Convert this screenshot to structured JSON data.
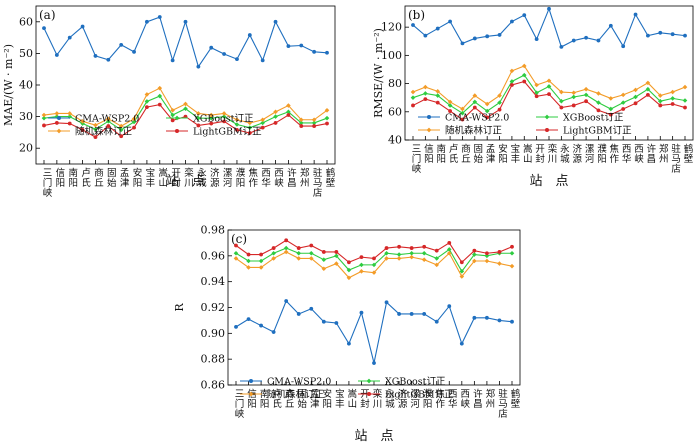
{
  "stations": [
    "三门峡",
    "信阳",
    "南阳",
    "卢氏",
    "商丘",
    "固始",
    "孟津",
    "安阳",
    "宝丰",
    "嵩山",
    "开封",
    "栾川",
    "永城",
    "济源",
    "漯河",
    "濮阳",
    "焦作",
    "西华",
    "西峡",
    "许昌",
    "郑州",
    "驻马店",
    "鹤壁"
  ],
  "colors": {
    "cma": "#1f6fbf",
    "xgb": "#2ecc40",
    "rf": "#f39c28",
    "lgbm": "#d62728"
  },
  "chart_data": [
    {
      "type": "line",
      "panel_label": "(a)",
      "ylabel": "MAE/(W · m⁻²)",
      "xlabel": "站　点",
      "ylim": [
        15,
        65
      ],
      "yticks": [
        20,
        30,
        40,
        50,
        60
      ],
      "tick_labels": [
        "20",
        "30",
        "40",
        "50",
        "60"
      ],
      "categories": [
        "三门峡",
        "信阳",
        "南阳",
        "卢氏",
        "商丘",
        "固始",
        "孟津",
        "安阳",
        "宝丰",
        "嵩山",
        "开封",
        "栾川",
        "永城",
        "济源",
        "漯河",
        "濮阳",
        "焦作",
        "西华",
        "西峡",
        "许昌",
        "郑州",
        "驻马店",
        "鹤壁"
      ],
      "series": [
        {
          "name": "CMA-WSP2.0",
          "key": "cma",
          "values": [
            58,
            49.5,
            55,
            58.5,
            49.2,
            48,
            52.7,
            50.5,
            60,
            61.5,
            47.8,
            60,
            45.8,
            51.8,
            49.8,
            48.2,
            55.8,
            47.8,
            60,
            52.3,
            52.5,
            50.5,
            50.2
          ]
        },
        {
          "name": "XGBoost订正",
          "key": "xgb",
          "values": [
            29.5,
            30,
            30,
            27.8,
            26,
            28.5,
            25.8,
            28.3,
            34.8,
            36.5,
            30.5,
            32.5,
            29.5,
            29.5,
            30,
            27.5,
            26.5,
            28,
            30,
            31.5,
            28,
            28,
            29.5
          ]
        },
        {
          "name": "随机森林订正",
          "key": "rf",
          "values": [
            30.5,
            31,
            31,
            28.5,
            27.3,
            29.3,
            27,
            29.3,
            37,
            39,
            32,
            34,
            31,
            30.5,
            31,
            29,
            28,
            29,
            31.5,
            33.5,
            29,
            29,
            32
          ]
        },
        {
          "name": "LightGBM订正",
          "key": "lgbm",
          "values": [
            27.2,
            28,
            27.8,
            25.8,
            23.5,
            27,
            23.8,
            26.5,
            33,
            33.8,
            28.8,
            30,
            27.2,
            27.8,
            28.5,
            25.8,
            24.8,
            26.5,
            28,
            30.5,
            27,
            27,
            27.8
          ]
        }
      ]
    },
    {
      "type": "line",
      "panel_label": "(b)",
      "ylabel": "RMSE/(W · m⁻²)",
      "xlabel": "站　点",
      "ylim": [
        40,
        135
      ],
      "yticks": [
        40,
        60,
        80,
        100,
        120
      ],
      "tick_labels": [
        "40",
        "60",
        "80",
        "100",
        "120"
      ],
      "categories": [
        "三门峡",
        "信阳",
        "南阳",
        "卢氏",
        "商丘",
        "固始",
        "孟津",
        "安阳",
        "宝丰",
        "嵩山",
        "开封",
        "栾川",
        "永城",
        "济源",
        "漯河",
        "濮阳",
        "焦作",
        "西华",
        "西峡",
        "许昌",
        "郑州",
        "驻马店",
        "鹤壁"
      ],
      "series": [
        {
          "name": "CMA-WSP2.0",
          "key": "cma",
          "values": [
            121.5,
            114,
            119,
            124,
            108.5,
            112,
            113.5,
            114.5,
            124,
            128.5,
            111.5,
            133,
            106,
            110.5,
            112.5,
            110.5,
            121,
            106.5,
            129,
            114,
            116,
            115,
            114
          ]
        },
        {
          "name": "XGBoost订正",
          "key": "xgb",
          "values": [
            70,
            73,
            71.5,
            64.5,
            59,
            67,
            60.5,
            66.5,
            81.5,
            86,
            73.5,
            78,
            67.5,
            70.5,
            72,
            66.5,
            62,
            66.5,
            70.5,
            76,
            67.5,
            69.5,
            68
          ]
        },
        {
          "name": "随机森林订正",
          "key": "rf",
          "values": [
            74,
            77.5,
            74.5,
            67,
            62,
            71.5,
            65.5,
            71.5,
            89,
            92.5,
            79,
            82,
            74,
            73.5,
            76,
            73,
            69.5,
            72,
            75.5,
            80.5,
            71.5,
            74,
            77.5
          ]
        },
        {
          "name": "LightGBM订正",
          "key": "lgbm",
          "values": [
            64.5,
            69,
            66.5,
            60.5,
            54.5,
            63,
            56,
            61.5,
            79,
            81.5,
            71,
            72.5,
            63,
            64.5,
            67.5,
            61,
            58,
            62,
            66,
            72,
            64.5,
            65.5,
            63
          ]
        }
      ]
    },
    {
      "type": "line",
      "panel_label": "(c)",
      "ylabel": "R",
      "xlabel": "站　点",
      "ylim": [
        0.86,
        0.98
      ],
      "yticks": [
        0.86,
        0.88,
        0.9,
        0.92,
        0.94,
        0.96,
        0.98
      ],
      "tick_labels": [
        "0.86",
        "0.88",
        "0.90",
        "0.92",
        "0.94",
        "0.96",
        "0.98"
      ],
      "categories": [
        "三门峡",
        "信阳",
        "南阳",
        "卢氏",
        "商丘",
        "固始",
        "孟津",
        "安阳",
        "宝丰",
        "嵩山",
        "开封",
        "栾川",
        "永城",
        "济源",
        "漯河",
        "濮阳",
        "焦作",
        "西华",
        "西峡",
        "许昌",
        "郑州",
        "驻马店",
        "鹤壁"
      ],
      "series": [
        {
          "name": "CMA-WSP2.0",
          "key": "cma",
          "values": [
            0.905,
            0.911,
            0.906,
            0.901,
            0.925,
            0.915,
            0.919,
            0.909,
            0.908,
            0.892,
            0.916,
            0.877,
            0.924,
            0.915,
            0.915,
            0.915,
            0.909,
            0.921,
            0.892,
            0.912,
            0.912,
            0.91,
            0.909
          ]
        },
        {
          "name": "XGBoost订正",
          "key": "xgb",
          "values": [
            0.962,
            0.956,
            0.956,
            0.962,
            0.966,
            0.962,
            0.962,
            0.957,
            0.96,
            0.949,
            0.953,
            0.953,
            0.962,
            0.961,
            0.962,
            0.962,
            0.958,
            0.965,
            0.948,
            0.961,
            0.96,
            0.962,
            0.962
          ]
        },
        {
          "name": "随机森林订正",
          "key": "rf",
          "values": [
            0.958,
            0.951,
            0.951,
            0.958,
            0.963,
            0.958,
            0.958,
            0.95,
            0.954,
            0.943,
            0.948,
            0.947,
            0.958,
            0.958,
            0.959,
            0.957,
            0.953,
            0.962,
            0.944,
            0.956,
            0.956,
            0.954,
            0.952
          ]
        },
        {
          "name": "LightGBM订正",
          "key": "lgbm",
          "values": [
            0.968,
            0.961,
            0.961,
            0.966,
            0.972,
            0.966,
            0.968,
            0.963,
            0.963,
            0.955,
            0.959,
            0.958,
            0.966,
            0.967,
            0.966,
            0.967,
            0.964,
            0.97,
            0.955,
            0.964,
            0.962,
            0.963,
            0.967
          ]
        }
      ]
    }
  ]
}
